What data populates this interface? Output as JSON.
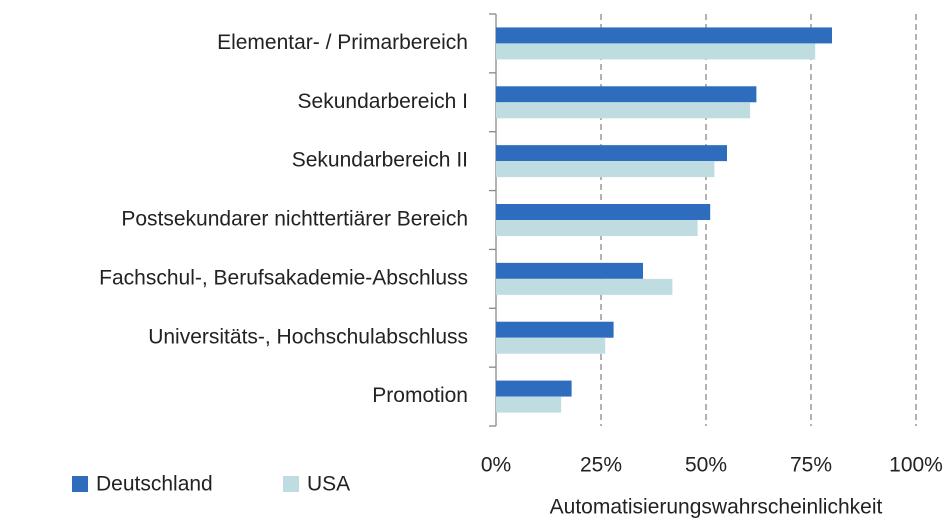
{
  "chart_data": {
    "type": "bar",
    "orientation": "horizontal",
    "x_label": "Automatisierungswahrscheinlichkeit",
    "categories": [
      "Elementar- / Primarbereich",
      "Sekundarbereich I",
      "Sekundarbereich II",
      "Postsekundarer nichttertiärer Bereich",
      "Fachschul-, Berufsakademie-Abschluss",
      "Universitäts-, Hochschulabschluss",
      "Promotion"
    ],
    "series": [
      {
        "name": "Deutschland",
        "color": "#2e6dbd",
        "values": [
          80,
          62,
          55,
          51,
          35,
          28,
          18
        ]
      },
      {
        "name": "USA",
        "color": "#bfdce0",
        "values": [
          76,
          60.5,
          52,
          48,
          42,
          26,
          15.5
        ]
      }
    ],
    "xlim": [
      0,
      100
    ],
    "xticks": [
      {
        "value": 0,
        "label": "0%"
      },
      {
        "value": 25,
        "label": "25%"
      },
      {
        "value": 50,
        "label": "50%"
      },
      {
        "value": 75,
        "label": "75%"
      },
      {
        "value": 100,
        "label": "100%"
      }
    ],
    "grid": true,
    "legend": "bottom-left"
  }
}
